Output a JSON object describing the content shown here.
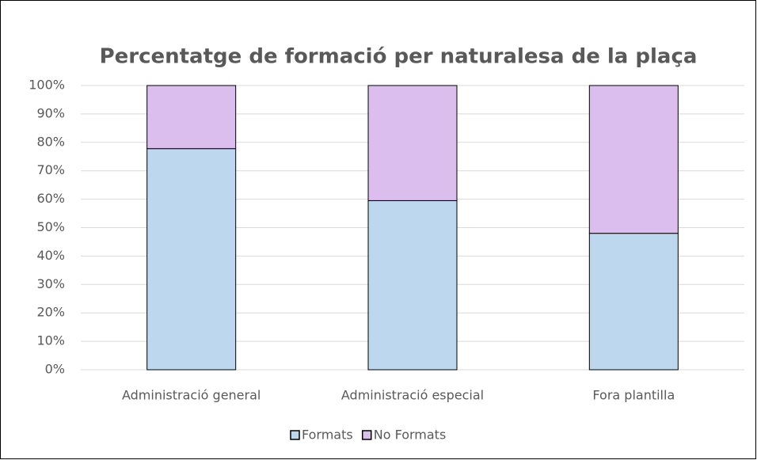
{
  "chart_data": {
    "type": "stacked_bar",
    "title": "Percentatge de formació per naturalesa de la plaça",
    "categories": [
      "Administració general",
      "Administració especial",
      "Fora plantilla"
    ],
    "series": [
      {
        "name": "Formats",
        "color": "#bdd7ee",
        "values": [
          77.8,
          59.5,
          48
        ]
      },
      {
        "name": "No Formats",
        "color": "#dbbdee",
        "values": [
          22.2,
          40.5,
          52
        ]
      }
    ],
    "ylim": [
      0,
      100
    ],
    "yticks": [
      {
        "value": 0,
        "label": "0%"
      },
      {
        "value": 10,
        "label": "10%"
      },
      {
        "value": 20,
        "label": "20%"
      },
      {
        "value": 30,
        "label": "30%"
      },
      {
        "value": 40,
        "label": "40%"
      },
      {
        "value": 50,
        "label": "50%"
      },
      {
        "value": 60,
        "label": "60%"
      },
      {
        "value": 70,
        "label": "70%"
      },
      {
        "value": 80,
        "label": "80%"
      },
      {
        "value": 90,
        "label": "90%"
      },
      {
        "value": 100,
        "label": "100%"
      }
    ],
    "grid": true,
    "legend": "bottom"
  }
}
